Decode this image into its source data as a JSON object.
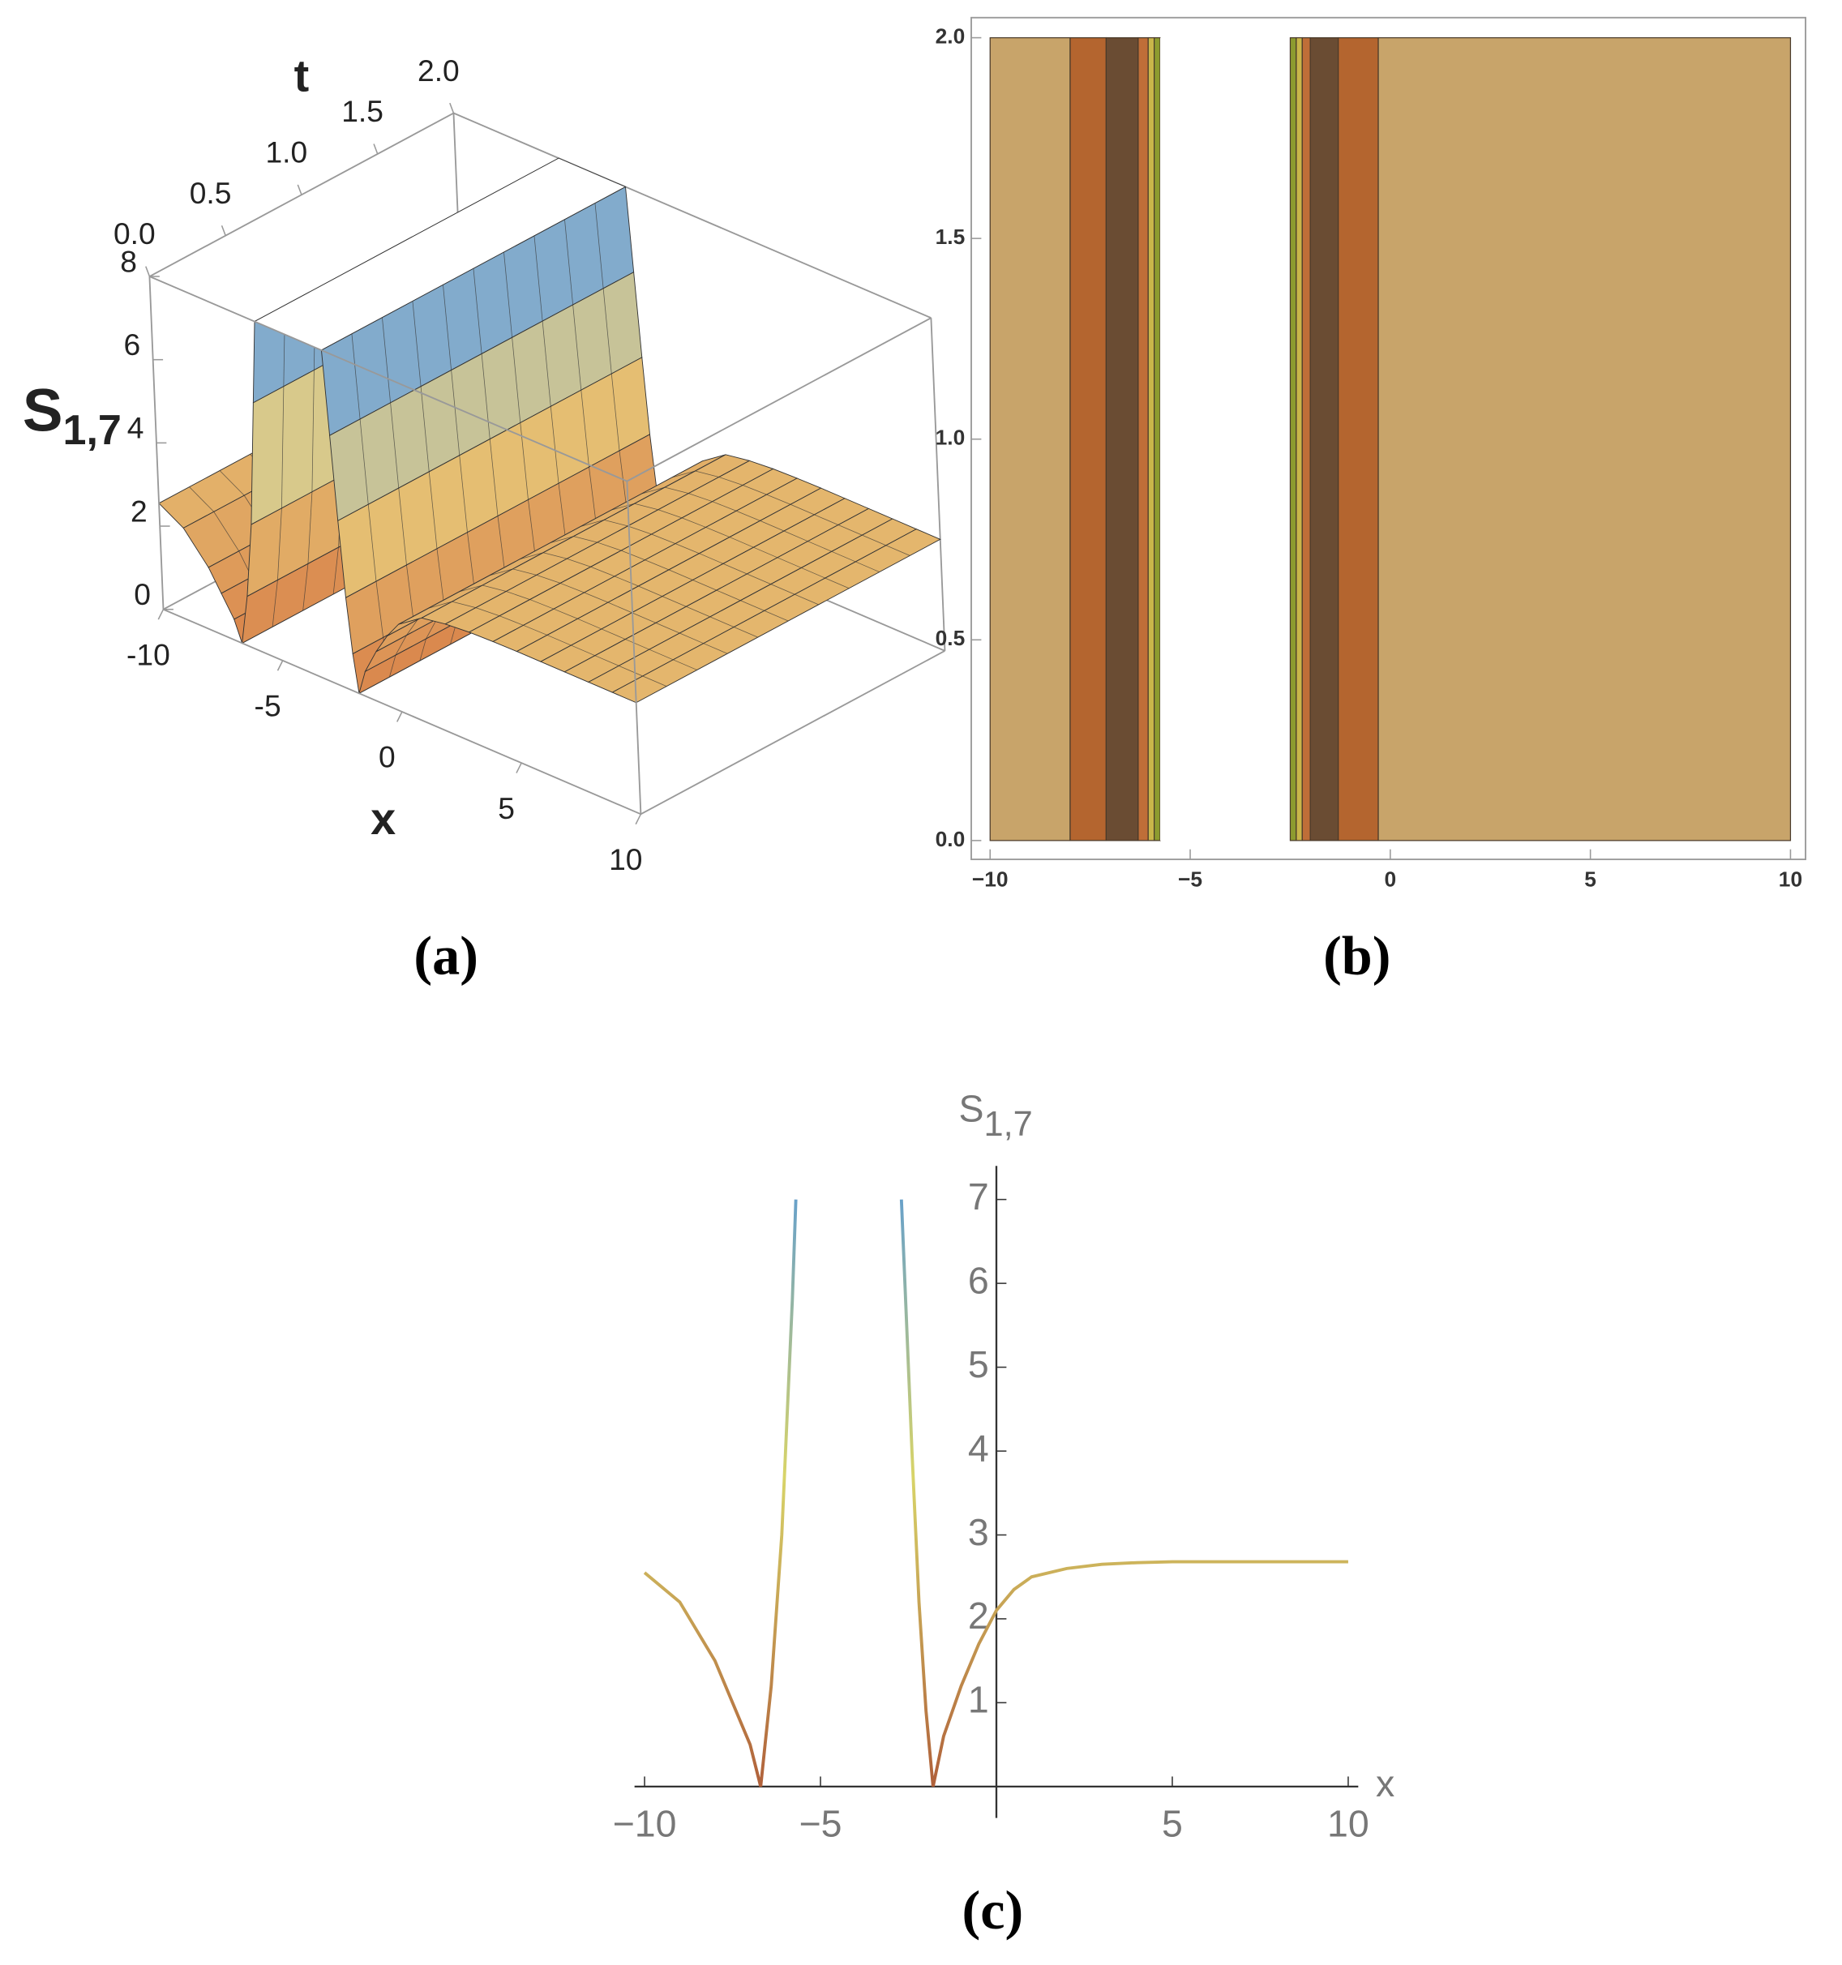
{
  "chart_data": [
    {
      "type": "surface",
      "caption": "(a)",
      "xlabel": "x",
      "tlabel": "t",
      "zlabel": {
        "text": "S",
        "subscript": "1,7"
      },
      "x": [
        -10,
        -9,
        -8,
        -7.5,
        -7,
        -6.7,
        -6.4,
        -6.1,
        -5.8,
        -5.6,
        -2.8,
        -2.6,
        -2.4,
        -2.2,
        -2.0,
        -1.8,
        -1.5,
        -1,
        -0.5,
        0,
        1,
        2,
        3,
        4,
        5,
        6,
        7,
        8,
        9,
        10
      ],
      "values": [
        2.55,
        2.2,
        1.5,
        1.0,
        0.5,
        0,
        1.2,
        3.0,
        6.0,
        8,
        8,
        6.0,
        4.0,
        2.2,
        0.9,
        0,
        0.6,
        1.2,
        1.7,
        2.1,
        2.5,
        2.6,
        2.65,
        2.67,
        2.68,
        2.68,
        2.68,
        2.68,
        2.68,
        2.68
      ],
      "xlim": [
        -10,
        10
      ],
      "tlim": [
        0,
        2
      ],
      "zlim": [
        0,
        8
      ],
      "xticks": [
        {
          "value": -10,
          "label": "-10"
        },
        {
          "value": -5,
          "label": "-5"
        },
        0,
        5,
        10
      ],
      "tticks": [
        {
          "value": 0,
          "label": "0.0"
        },
        0.5,
        {
          "value": 1,
          "label": "1.0"
        },
        1.5,
        {
          "value": 2,
          "label": "2.0"
        }
      ],
      "zticks": [
        0,
        2,
        4,
        6,
        8
      ],
      "colormap": [
        "#d9834a",
        "#e9cf7e",
        "#5f9fe6"
      ]
    },
    {
      "type": "contour",
      "caption": "(b)",
      "edges": [
        -10,
        -8,
        -7.1,
        -6.3,
        -6.05,
        -5.9,
        -5.75,
        -2.5,
        -2.35,
        -2.2,
        -2.0,
        -1.3,
        -0.3,
        10
      ],
      "colors": [
        "#c8a46a",
        "#b4652f",
        "#6a4c33",
        "#bf6e38",
        "#c9b64a",
        "#8d9b2f",
        "#ffffff",
        "#8d9b2f",
        "#c9b64a",
        "#bf6e38",
        "#6a4c33",
        "#b4652f",
        "#c8a46a"
      ],
      "xlim": [
        -10,
        10
      ],
      "ylim": [
        0,
        2
      ],
      "xticks": [
        {
          "value": -10,
          "label": "−10"
        },
        {
          "value": -5,
          "label": "−5"
        },
        0,
        5,
        10
      ],
      "yticks": [
        {
          "value": 0,
          "label": "0.0"
        },
        0.5,
        {
          "value": 1,
          "label": "1.0"
        },
        1.5,
        {
          "value": 2,
          "label": "2.0"
        }
      ]
    },
    {
      "type": "line",
      "caption": "(c)",
      "xlabel": "x",
      "ylabel": {
        "text": "S",
        "subscript": "1,7"
      },
      "x": [
        -10,
        -9,
        -8,
        -7.5,
        -7,
        -6.7,
        -6.4,
        -6.1,
        -5.8,
        -5.7,
        -4.2,
        -2.7,
        -2.6,
        -2.4,
        -2.2,
        -2.0,
        -1.8,
        -1.5,
        -1,
        -0.5,
        0,
        0.5,
        1,
        2,
        3,
        4,
        5,
        7,
        10
      ],
      "values": [
        2.55,
        2.2,
        1.5,
        1.0,
        0.5,
        0,
        1.2,
        3.0,
        5.8,
        7,
        null,
        7,
        6.0,
        4.0,
        2.2,
        0.9,
        0,
        0.6,
        1.2,
        1.7,
        2.1,
        2.35,
        2.5,
        2.6,
        2.65,
        2.67,
        2.68,
        2.68,
        2.68
      ],
      "xlim": [
        -10,
        10
      ],
      "ylim": [
        0,
        7.4
      ],
      "xticks": [
        {
          "value": -10,
          "label": "−10"
        },
        {
          "value": -5,
          "label": "−5"
        },
        5,
        10
      ],
      "yticks": [
        1,
        2,
        3,
        4,
        5,
        6,
        7
      ],
      "colormap": [
        "#b0603a",
        "#d8d468",
        "#5b9bd5"
      ]
    }
  ]
}
